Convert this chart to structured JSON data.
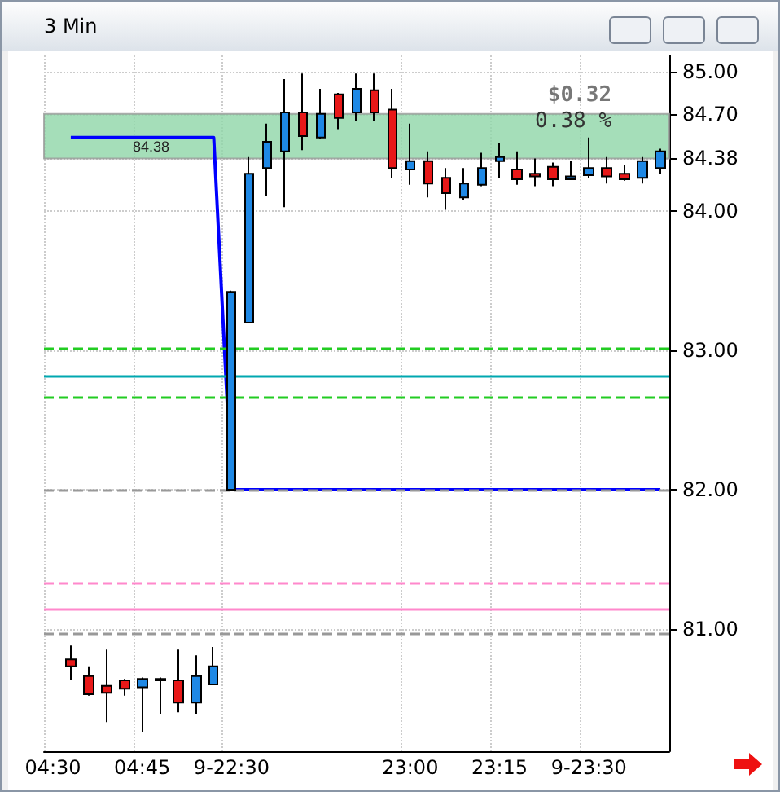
{
  "chart_data": {
    "type": "candlestick",
    "title": "3 Min",
    "categories": [
      "04:30",
      null,
      null,
      null,
      null,
      "04:45",
      null,
      null,
      null,
      null,
      "9-22:30",
      null,
      null,
      null,
      null,
      null,
      null,
      null,
      null,
      null,
      "23:00",
      null,
      null,
      null,
      null,
      "23:15",
      null,
      null,
      null,
      null,
      "9-23:30",
      null,
      null,
      null,
      null
    ],
    "ohlc": [
      null,
      [
        80.78,
        80.88,
        80.63,
        80.73
      ],
      [
        80.66,
        80.73,
        80.52,
        80.53
      ],
      [
        80.59,
        80.85,
        80.33,
        80.54
      ],
      [
        80.63,
        80.64,
        80.52,
        80.57
      ],
      [
        80.58,
        80.65,
        80.26,
        80.64
      ],
      [
        80.64,
        80.65,
        80.39,
        80.63
      ],
      [
        80.63,
        80.85,
        80.4,
        80.47
      ],
      [
        80.47,
        80.81,
        80.39,
        80.66
      ],
      [
        80.6,
        80.87,
        80.6,
        80.73
      ],
      [
        82.0,
        83.43,
        82.0,
        83.42
      ],
      [
        83.2,
        84.39,
        83.2,
        84.27
      ],
      [
        84.31,
        84.63,
        84.11,
        84.5
      ],
      [
        84.43,
        84.95,
        84.03,
        84.71
      ],
      [
        84.71,
        84.99,
        84.44,
        84.54
      ],
      [
        84.53,
        84.88,
        84.52,
        84.7
      ],
      [
        84.84,
        84.85,
        84.59,
        84.67
      ],
      [
        84.71,
        84.99,
        84.65,
        84.88
      ],
      [
        84.87,
        84.99,
        84.65,
        84.71
      ],
      [
        84.73,
        84.88,
        84.24,
        84.31
      ],
      [
        84.3,
        84.63,
        84.19,
        84.36
      ],
      [
        84.36,
        84.43,
        84.1,
        84.2
      ],
      [
        84.24,
        84.31,
        84.01,
        84.13
      ],
      [
        84.1,
        84.31,
        84.08,
        84.2
      ],
      [
        84.19,
        84.42,
        84.18,
        84.31
      ],
      [
        84.36,
        84.49,
        84.24,
        84.39
      ],
      [
        84.3,
        84.43,
        84.19,
        84.23
      ],
      [
        84.27,
        84.38,
        84.18,
        84.25
      ],
      [
        84.32,
        84.35,
        84.18,
        84.23
      ],
      [
        84.23,
        84.36,
        84.23,
        84.25
      ],
      [
        84.26,
        84.53,
        84.24,
        84.31
      ],
      [
        84.31,
        84.39,
        84.2,
        84.25
      ],
      [
        84.27,
        84.33,
        84.22,
        84.23
      ],
      [
        84.24,
        84.39,
        84.2,
        84.36
      ],
      [
        84.31,
        84.45,
        84.27,
        84.43
      ]
    ],
    "colors": [
      null,
      "#e81818",
      "#e81818",
      "#e81818",
      "#e81818",
      "#1e88e5",
      "#e81818",
      "#e81818",
      "#1e88e5",
      "#1e88e5",
      "#1e88e5",
      "#1e88e5",
      "#1e88e5",
      "#1e88e5",
      "#e81818",
      "#1e88e5",
      "#e81818",
      "#1e88e5",
      "#e81818",
      "#e81818",
      "#1e88e5",
      "#e81818",
      "#e81818",
      "#1e88e5",
      "#1e88e5",
      "#1e88e5",
      "#e81818",
      "#e81818",
      "#e81818",
      "#1e88e5",
      "#1e88e5",
      "#e81818",
      "#e81818",
      "#1e88e5",
      "#1e88e5"
    ],
    "series": [
      {
        "type": "line",
        "color": "#0000ff",
        "values": [
          null,
          84.53,
          84.53,
          84.53,
          84.53,
          84.53,
          84.53,
          84.53,
          84.53,
          84.53,
          82.0,
          82.0,
          82.0,
          82.0,
          82.0,
          82.0,
          82.0,
          82.0,
          82.0,
          82.0,
          82.0,
          82.0,
          82.0,
          82.0,
          82.0,
          82.0,
          82.0,
          82.0,
          82.0,
          82.0,
          82.0,
          82.0,
          82.0,
          82.0,
          82.0
        ]
      }
    ],
    "ylim": [
      80.12,
      85.12
    ],
    "yticks": [
      {
        "value": 81,
        "label": "81.00"
      },
      {
        "value": 82,
        "label": "82.00"
      },
      {
        "value": 83,
        "label": "83.00"
      },
      {
        "value": 84,
        "label": "84.00"
      },
      {
        "value": 84.38,
        "label": "84.38"
      },
      {
        "value": 84.7,
        "label": "84.70"
      },
      {
        "value": 85,
        "label": "85.00"
      }
    ],
    "ref_lines": [
      {
        "axis": "y",
        "value": 83.01,
        "color": "#22cc22",
        "line_style": "dashed"
      },
      {
        "axis": "y",
        "value": 82.82,
        "color": "#00a8b0",
        "line_style": "solid"
      },
      {
        "axis": "y",
        "value": 82.66,
        "color": "#22cc22",
        "line_style": "dashed"
      },
      {
        "axis": "y",
        "value": 82.0,
        "color": "#999999",
        "line_style": "dashed"
      },
      {
        "axis": "y",
        "value": 81.33,
        "color": "#ff88cc",
        "line_style": "dashed"
      },
      {
        "axis": "y",
        "value": 81.14,
        "color": "#ff88cc",
        "line_style": "solid"
      },
      {
        "axis": "y",
        "value": 80.97,
        "color": "#999999",
        "line_style": "dashed"
      }
    ],
    "bands": [
      {
        "axis": "y",
        "from": 84.38,
        "to": 84.7,
        "label": "84.38",
        "color": "#8fd6a8"
      }
    ],
    "annotations": [
      "$0.32",
      "0.38 %"
    ],
    "grid": true,
    "marker": "none",
    "line_style": "solid"
  }
}
